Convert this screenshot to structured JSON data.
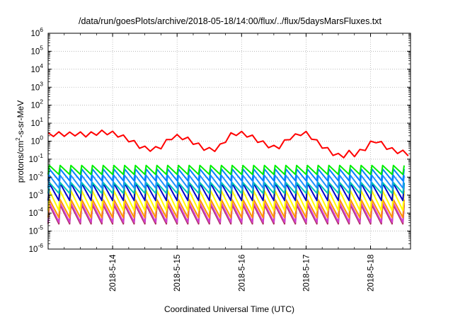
{
  "chart_data": {
    "type": "line",
    "title": "/data/run/goesPlots/archive/2018-05-18/14:00/flux/../flux/5daysMarsFluxes.txt",
    "xlabel": "Coordinated Universal Time (UTC)",
    "ylabel_parts": [
      "protons/cm",
      "2",
      "-s-sr-MeV"
    ],
    "y_scale": "log",
    "ylim_exponent": [
      -6,
      6
    ],
    "y_tick_exponents": [
      -6,
      -5,
      -4,
      -3,
      -2,
      -1,
      0,
      1,
      2,
      3,
      4,
      5,
      6
    ],
    "y_tick_base": "10",
    "xlim_days": [
      13.0,
      18.62
    ],
    "x_ticks": [
      {
        "label": "2018-5-14",
        "day": 14
      },
      {
        "label": "2018-5-15",
        "day": 15
      },
      {
        "label": "2018-5-16",
        "day": 16
      },
      {
        "label": "2018-5-17",
        "day": 17
      },
      {
        "label": "2018-5-18",
        "day": 18
      }
    ],
    "grid": true,
    "legend": "none",
    "sawtooth_period_days": 0.1667,
    "series": [
      {
        "color": "#ff0000",
        "low_log": null,
        "high_log": null,
        "points": [
          [
            13.0,
            0.35
          ],
          [
            13.15,
            0.4
          ],
          [
            13.3,
            0.38
          ],
          [
            13.45,
            0.42
          ],
          [
            13.6,
            0.35
          ],
          [
            13.75,
            0.45
          ],
          [
            13.85,
            0.5
          ],
          [
            13.95,
            0.47
          ],
          [
            14.05,
            0.4
          ],
          [
            14.15,
            0.25
          ],
          [
            14.3,
            0.0
          ],
          [
            14.4,
            -0.25
          ],
          [
            14.5,
            -0.4
          ],
          [
            14.6,
            -0.45
          ],
          [
            14.72,
            -0.4
          ],
          [
            14.8,
            -0.15
          ],
          [
            14.9,
            0.2
          ],
          [
            15.0,
            0.25
          ],
          [
            15.1,
            0.2
          ],
          [
            15.2,
            0.05
          ],
          [
            15.32,
            -0.2
          ],
          [
            15.45,
            -0.45
          ],
          [
            15.55,
            -0.5
          ],
          [
            15.65,
            -0.35
          ],
          [
            15.75,
            0.05
          ],
          [
            15.85,
            0.4
          ],
          [
            15.95,
            0.45
          ],
          [
            16.05,
            0.4
          ],
          [
            16.15,
            0.25
          ],
          [
            16.3,
            -0.05
          ],
          [
            16.45,
            -0.3
          ],
          [
            16.55,
            -0.4
          ],
          [
            16.65,
            -0.1
          ],
          [
            16.75,
            0.2
          ],
          [
            16.85,
            0.3
          ],
          [
            16.95,
            0.5
          ],
          [
            17.05,
            0.35
          ],
          [
            17.15,
            0.0
          ],
          [
            17.3,
            -0.4
          ],
          [
            17.45,
            -0.75
          ],
          [
            17.55,
            -0.85
          ],
          [
            17.62,
            -0.75
          ],
          [
            17.7,
            -0.55
          ],
          [
            17.78,
            -0.85
          ],
          [
            17.85,
            -0.5
          ],
          [
            17.95,
            -0.35
          ],
          [
            18.05,
            0.1
          ],
          [
            18.15,
            -0.1
          ],
          [
            18.3,
            -0.45
          ],
          [
            18.45,
            -0.6
          ],
          [
            18.55,
            -0.65
          ],
          [
            18.62,
            -0.75
          ]
        ],
        "amp": 0.12
      },
      {
        "color": "#00ee00",
        "low_log": -1.85,
        "high_log": -1.35,
        "amp": 0
      },
      {
        "color": "#0080ff",
        "low_log": -2.2,
        "high_log": -1.55,
        "amp": 0
      },
      {
        "color": "#1e90ff",
        "low_log": -2.6,
        "high_log": -1.9,
        "amp": 0
      },
      {
        "color": "#00c8b4",
        "low_log": -2.9,
        "high_log": -2.3,
        "amp": 0
      },
      {
        "color": "#0000cc",
        "low_log": -3.3,
        "high_log": -2.35,
        "amp": 0
      },
      {
        "color": "#ffff00",
        "low_log": -3.85,
        "high_log": -2.75,
        "amp": 0
      },
      {
        "color": "#ff9000",
        "low_log": -4.25,
        "high_log": -3.25,
        "amp": 0
      },
      {
        "color": "#d040d0",
        "low_log": -4.5,
        "high_log": -3.45,
        "amp": 0
      },
      {
        "color": "#b03060",
        "low_log": -4.6,
        "high_log": -3.55,
        "amp": 0
      }
    ]
  }
}
